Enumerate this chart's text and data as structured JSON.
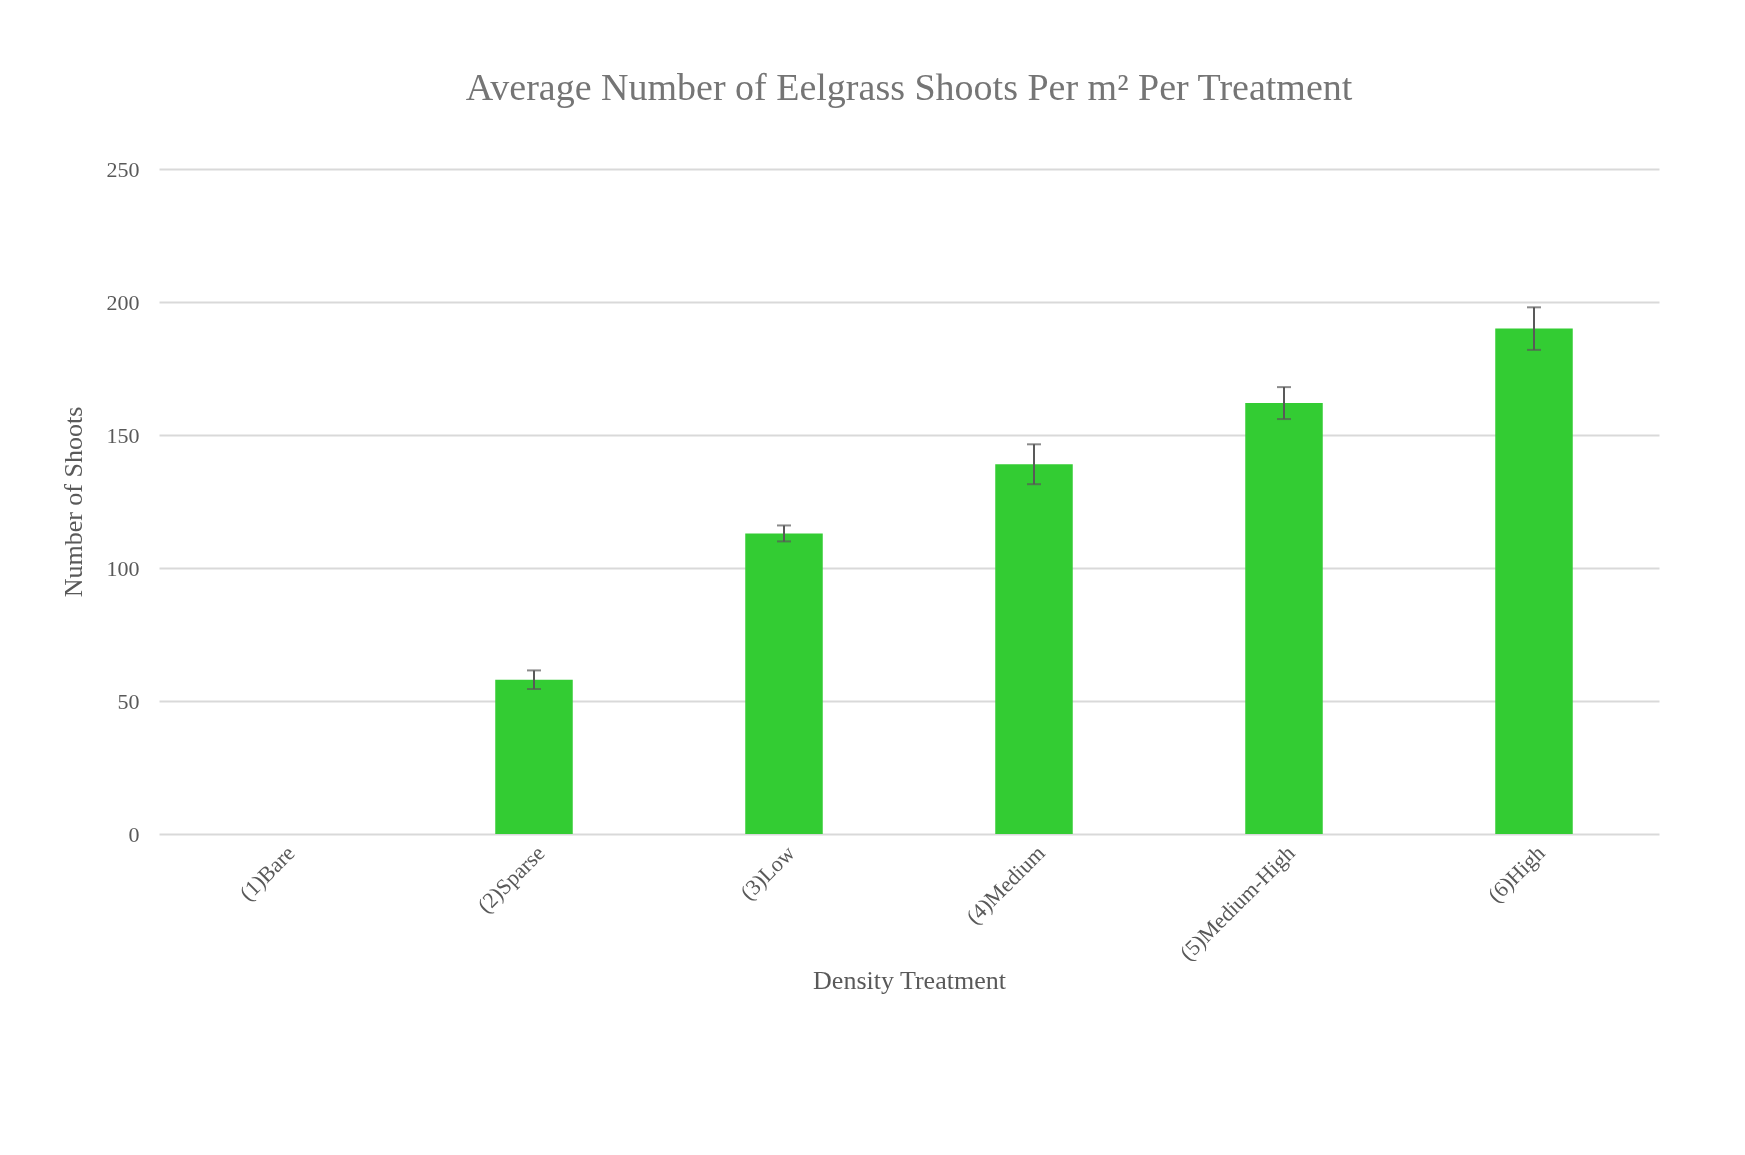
{
  "chart_data": {
    "type": "bar",
    "title": "Average Number of Eelgrass Shoots Per m² Per Treatment",
    "xlabel": "Density Treatment",
    "ylabel": "Number of Shoots",
    "categories": [
      "(1)Bare",
      "(2)Sparse",
      "(3)Low",
      "(4)Medium",
      "(5)Medium-High",
      "(6)High"
    ],
    "values": [
      0,
      58,
      113,
      139,
      162,
      190
    ],
    "errors": [
      null,
      3.5,
      3,
      7.5,
      6,
      8
    ],
    "color": "#33cc33",
    "ylim": [
      0,
      250
    ],
    "yticks": [
      0,
      50,
      100,
      150,
      200,
      250
    ],
    "grid": "y"
  }
}
